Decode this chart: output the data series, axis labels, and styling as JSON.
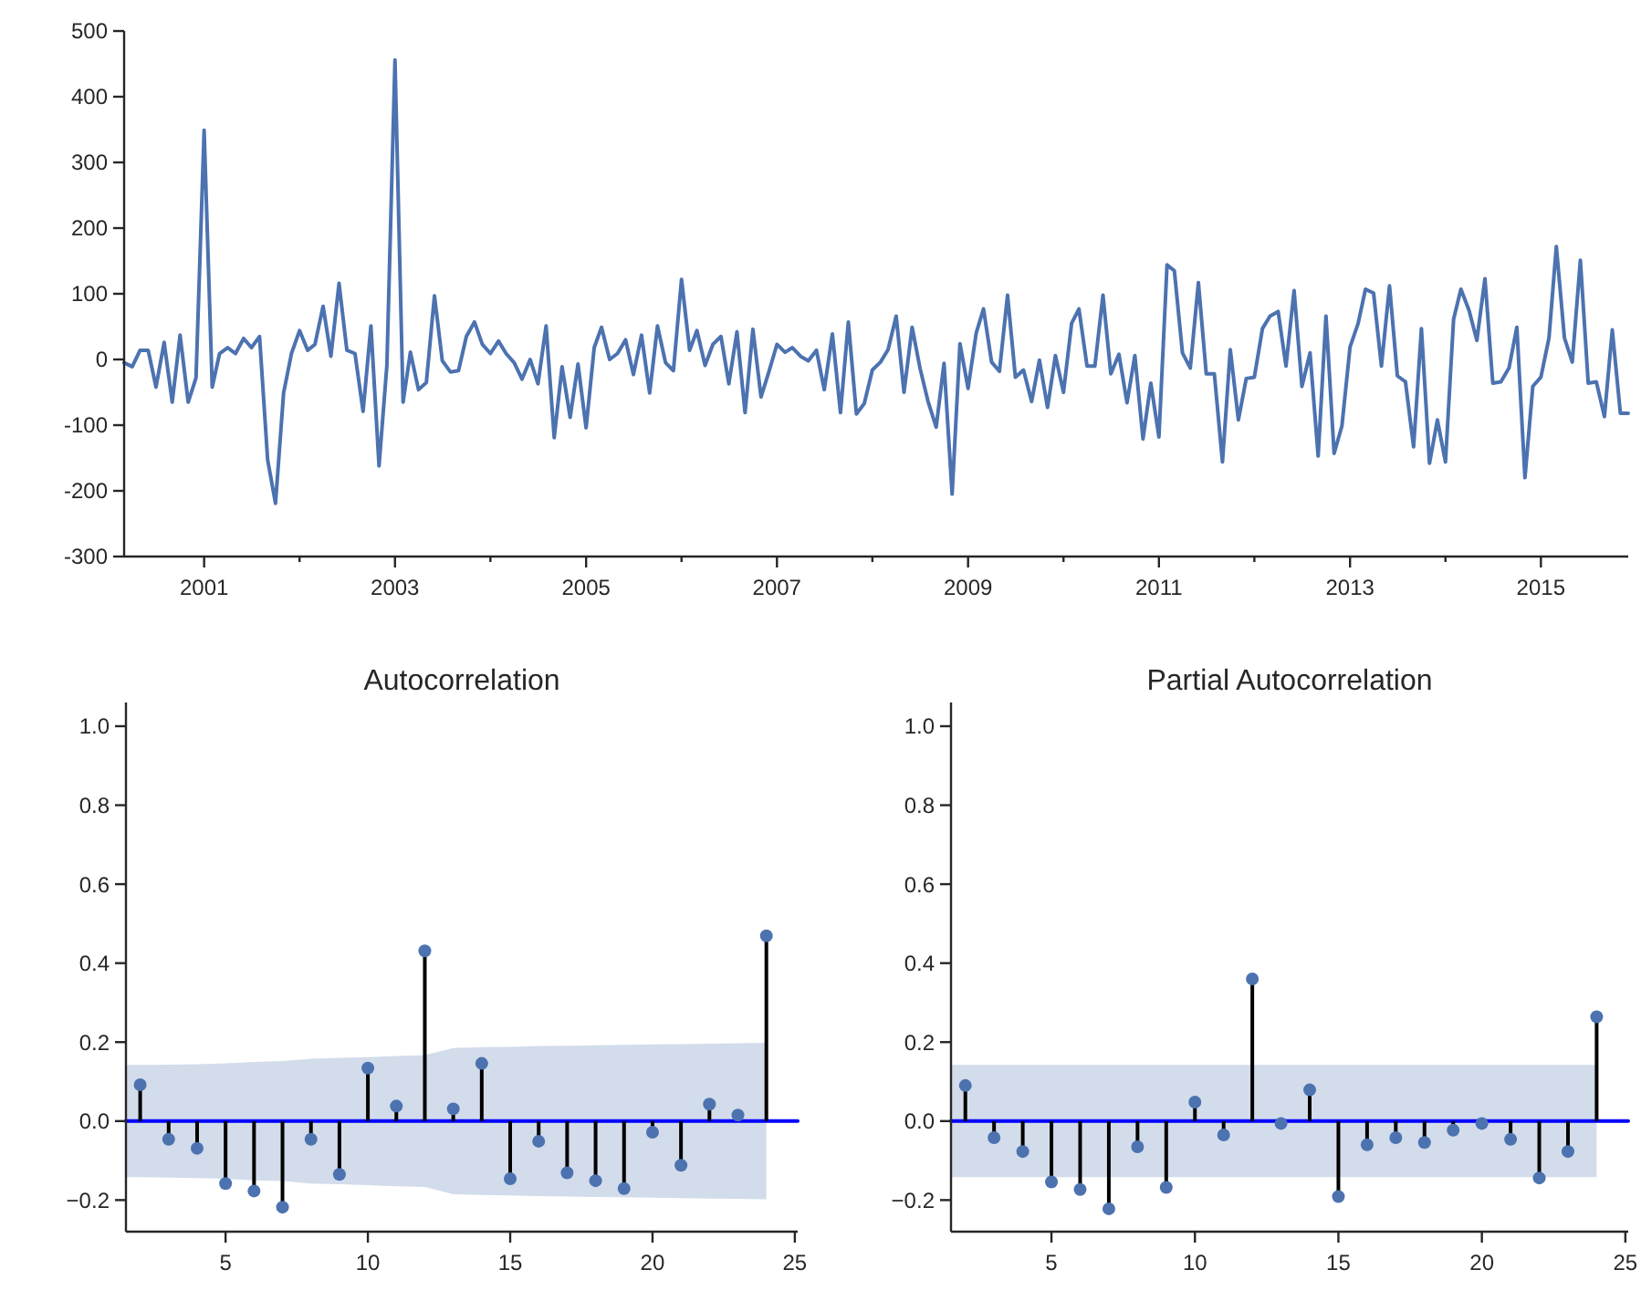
{
  "chart_data": [
    {
      "type": "line",
      "xlim": [
        "2000-03",
        "2015-12"
      ],
      "ylim": [
        -300,
        500
      ],
      "yticks": [
        -300,
        -200,
        -100,
        0,
        100,
        200,
        300,
        400,
        500
      ],
      "xticks": [
        "2001",
        {
          "value": "2002",
          "label": null
        },
        "2003",
        {
          "value": "2004",
          "label": null
        },
        "2005",
        {
          "value": "2006",
          "label": null
        },
        "2007",
        {
          "value": "2008",
          "label": null
        },
        "2009",
        {
          "value": "2010",
          "label": null
        },
        "2011",
        {
          "value": "2012",
          "label": null
        },
        "2013",
        {
          "value": "2014",
          "label": null
        },
        "2015"
      ],
      "grid": false,
      "marker": "none",
      "line_style": "solid",
      "series": [
        {
          "color": "#4c72b0",
          "x": [
            "2000-03",
            "2000-04",
            "2000-05",
            "2000-06",
            "2000-07",
            "2000-08",
            "2000-09",
            "2000-10",
            "2000-11",
            "2000-12",
            "2001-01",
            "2001-02",
            "2001-03",
            "2001-04",
            "2001-05",
            "2001-06",
            "2001-07",
            "2001-08",
            "2001-09",
            "2001-10",
            "2001-11",
            "2001-12",
            "2002-01",
            "2002-02",
            "2002-03",
            "2002-04",
            "2002-05",
            "2002-06",
            "2002-07",
            "2002-08",
            "2002-09",
            "2002-10",
            "2002-11",
            "2002-12",
            "2003-01",
            "2003-02",
            "2003-03",
            "2003-04",
            "2003-05",
            "2003-06",
            "2003-07",
            "2003-08",
            "2003-09",
            "2003-10",
            "2003-11",
            "2003-12",
            "2004-01",
            "2004-02",
            "2004-03",
            "2004-04",
            "2004-05",
            "2004-06",
            "2004-07",
            "2004-08",
            "2004-09",
            "2004-10",
            "2004-11",
            "2004-12",
            "2005-01",
            "2005-02",
            "2005-03",
            "2005-04",
            "2005-05",
            "2005-06",
            "2005-07",
            "2005-08",
            "2005-09",
            "2005-10",
            "2005-11",
            "2005-12",
            "2006-01",
            "2006-02",
            "2006-03",
            "2006-04",
            "2006-05",
            "2006-06",
            "2006-07",
            "2006-08",
            "2006-09",
            "2006-10",
            "2006-11",
            "2006-12",
            "2007-01",
            "2007-02",
            "2007-03",
            "2007-04",
            "2007-05",
            "2007-06",
            "2007-07",
            "2007-08",
            "2007-09",
            "2007-10",
            "2007-11",
            "2007-12",
            "2008-01",
            "2008-02",
            "2008-03",
            "2008-04",
            "2008-05",
            "2008-06",
            "2008-07",
            "2008-08",
            "2008-09",
            "2008-10",
            "2008-11",
            "2008-12",
            "2009-01",
            "2009-02",
            "2009-03",
            "2009-04",
            "2009-05",
            "2009-06",
            "2009-07",
            "2009-08",
            "2009-09",
            "2009-10",
            "2009-11",
            "2009-12",
            "2010-01",
            "2010-02",
            "2010-03",
            "2010-04",
            "2010-05",
            "2010-06",
            "2010-07",
            "2010-08",
            "2010-09",
            "2010-10",
            "2010-11",
            "2010-12",
            "2011-01",
            "2011-02",
            "2011-03",
            "2011-04",
            "2011-05",
            "2011-06",
            "2011-07",
            "2011-08",
            "2011-09",
            "2011-10",
            "2011-11",
            "2011-12",
            "2012-01",
            "2012-02",
            "2012-03",
            "2012-04",
            "2012-05",
            "2012-06",
            "2012-07",
            "2012-08",
            "2012-09",
            "2012-10",
            "2012-11",
            "2012-12",
            "2013-01",
            "2013-02",
            "2013-03",
            "2013-04",
            "2013-05",
            "2013-06",
            "2013-07",
            "2013-08",
            "2013-09",
            "2013-10",
            "2013-11",
            "2013-12",
            "2014-01",
            "2014-02",
            "2014-03",
            "2014-04",
            "2014-05",
            "2014-06",
            "2014-07",
            "2014-08",
            "2014-09",
            "2014-10",
            "2014-11",
            "2014-12",
            "2015-01",
            "2015-02",
            "2015-03",
            "2015-04",
            "2015-05",
            "2015-06",
            "2015-07",
            "2015-08",
            "2015-09",
            "2015-10",
            "2015-11",
            "2015-12"
          ],
          "values": [
            -5,
            -11,
            14,
            14,
            -42,
            26,
            -65,
            37,
            -65,
            -28,
            349,
            -42,
            9,
            18,
            9,
            32,
            18,
            35,
            -153,
            -219,
            -51,
            9,
            44,
            14,
            23,
            81,
            5,
            116,
            14,
            9,
            -79,
            51,
            -162,
            -9,
            456,
            -65,
            11,
            -46,
            -35,
            97,
            -2,
            -19,
            -17,
            35,
            57,
            23,
            9,
            28,
            9,
            -5,
            -30,
            0,
            -37,
            51,
            -119,
            -11,
            -88,
            -7,
            -104,
            18,
            49,
            0,
            9,
            30,
            -23,
            37,
            -51,
            51,
            -5,
            -17,
            122,
            14,
            44,
            -9,
            23,
            35,
            -37,
            42,
            -81,
            46,
            -57,
            -19,
            23,
            11,
            18,
            5,
            -2,
            14,
            -46,
            39,
            -81,
            57,
            -83,
            -67,
            -16,
            -4,
            15,
            66,
            -50,
            49,
            -13,
            -64,
            -103,
            -6,
            -205,
            24,
            -44,
            40,
            77,
            -4,
            -18,
            98,
            -27,
            -16,
            -64,
            -1,
            -73,
            6,
            -50,
            55,
            77,
            -10,
            -10,
            98,
            -22,
            8,
            -66,
            6,
            -121,
            -36,
            -118,
            144,
            135,
            10,
            -13,
            117,
            -22,
            -22,
            -156,
            15,
            -92,
            -29,
            -27,
            47,
            66,
            73,
            -10,
            105,
            -41,
            10,
            -147,
            66,
            -143,
            -101,
            19,
            55,
            107,
            101,
            -10,
            112,
            -25,
            -34,
            -133,
            47,
            -158,
            -92,
            -156,
            61,
            107,
            75,
            29,
            123,
            -36,
            -34,
            -13,
            49,
            -180,
            -41,
            -27,
            33,
            172,
            33,
            -4,
            151,
            -36,
            -34,
            -87,
            45,
            -82,
            -82
          ]
        }
      ]
    },
    {
      "type": "lollipop",
      "title": "Autocorrelation",
      "xlim": [
        1.5,
        25.1
      ],
      "xticks": [
        5,
        10,
        15,
        20,
        25
      ],
      "ylim": [
        -0.28,
        1.06
      ],
      "yticks": [
        {
          "value": -0.2,
          "label": "−0.2"
        },
        {
          "value": 0,
          "label": "0.0"
        },
        {
          "value": 0.2,
          "label": "0.2"
        },
        {
          "value": 0.4,
          "label": "0.4"
        },
        {
          "value": 0.6,
          "label": "0.6"
        },
        {
          "value": 0.8,
          "label": "0.8"
        },
        {
          "value": 1,
          "label": "1.0"
        }
      ],
      "grid": false,
      "series": [
        {
          "color": "#4c72b0",
          "marker": "circle",
          "x": [
            2,
            3,
            4,
            5,
            6,
            7,
            8,
            9,
            10,
            11,
            12,
            13,
            14,
            15,
            16,
            17,
            18,
            19,
            20,
            21,
            22,
            23,
            24
          ],
          "values": [
            0.092,
            -0.046,
            -0.069,
            -0.158,
            -0.177,
            -0.218,
            -0.046,
            -0.135,
            0.134,
            0.038,
            0.431,
            0.031,
            0.146,
            -0.146,
            -0.051,
            -0.131,
            -0.151,
            -0.171,
            -0.028,
            -0.112,
            0.043,
            0.015,
            0.469
          ]
        },
        {
          "type": "line",
          "color": "#0000ff",
          "x": [
            1.5,
            2,
            3,
            4,
            5,
            6,
            7,
            8,
            9,
            10,
            11,
            12,
            13,
            14,
            15,
            16,
            17,
            18,
            19,
            20,
            21,
            22,
            23,
            24,
            25.1
          ],
          "values": [
            0,
            0,
            0,
            0,
            0,
            0,
            0,
            0,
            0,
            0,
            0,
            0,
            0,
            0,
            0,
            0,
            0,
            0,
            0,
            0,
            0,
            0,
            0,
            0,
            0
          ],
          "marker": "none",
          "upper": [
            0.142,
            0.142,
            0.143,
            0.144,
            0.146,
            0.15,
            0.152,
            0.158,
            0.16,
            0.162,
            0.165,
            0.167,
            0.185,
            0.187,
            0.188,
            0.19,
            0.191,
            0.192,
            0.193,
            0.194,
            0.195,
            0.196,
            0.197,
            0.198,
            null
          ],
          "lower": [
            -0.142,
            -0.142,
            -0.143,
            -0.144,
            -0.146,
            -0.15,
            -0.152,
            -0.158,
            -0.16,
            -0.162,
            -0.165,
            -0.167,
            -0.185,
            -0.187,
            -0.188,
            -0.19,
            -0.191,
            -0.192,
            -0.193,
            -0.194,
            -0.195,
            -0.196,
            -0.197,
            -0.198,
            null
          ]
        }
      ]
    },
    {
      "type": "lollipop",
      "title": "Partial Autocorrelation",
      "xlim": [
        1.5,
        25.1
      ],
      "xticks": [
        5,
        10,
        15,
        20,
        25
      ],
      "ylim": [
        -0.28,
        1.06
      ],
      "yticks": [
        {
          "value": -0.2,
          "label": "−0.2"
        },
        {
          "value": 0,
          "label": "0.0"
        },
        {
          "value": 0.2,
          "label": "0.2"
        },
        {
          "value": 0.4,
          "label": "0.4"
        },
        {
          "value": 0.6,
          "label": "0.6"
        },
        {
          "value": 0.8,
          "label": "0.8"
        },
        {
          "value": 1,
          "label": "1.0"
        }
      ],
      "grid": false,
      "series": [
        {
          "color": "#4c72b0",
          "marker": "circle",
          "x": [
            2,
            3,
            4,
            5,
            6,
            7,
            8,
            9,
            10,
            11,
            12,
            13,
            14,
            15,
            16,
            17,
            18,
            19,
            20,
            21,
            22,
            23,
            24
          ],
          "values": [
            0.09,
            -0.042,
            -0.077,
            -0.154,
            -0.173,
            -0.222,
            -0.065,
            -0.168,
            0.048,
            -0.035,
            0.36,
            -0.006,
            0.079,
            -0.191,
            -0.06,
            -0.042,
            -0.054,
            -0.023,
            -0.006,
            -0.046,
            -0.144,
            -0.077,
            0.264
          ]
        },
        {
          "type": "line",
          "color": "#0000ff",
          "x": [
            1.5,
            2,
            3,
            4,
            5,
            6,
            7,
            8,
            9,
            10,
            11,
            12,
            13,
            14,
            15,
            16,
            17,
            18,
            19,
            20,
            21,
            22,
            23,
            24,
            25.1
          ],
          "values": [
            0,
            0,
            0,
            0,
            0,
            0,
            0,
            0,
            0,
            0,
            0,
            0,
            0,
            0,
            0,
            0,
            0,
            0,
            0,
            0,
            0,
            0,
            0,
            0,
            0
          ],
          "marker": "none",
          "upper": [
            0.142,
            0.142,
            0.142,
            0.142,
            0.142,
            0.142,
            0.142,
            0.142,
            0.142,
            0.142,
            0.142,
            0.142,
            0.142,
            0.142,
            0.142,
            0.142,
            0.142,
            0.142,
            0.142,
            0.142,
            0.142,
            0.142,
            0.142,
            0.142,
            null
          ],
          "lower": [
            -0.142,
            -0.142,
            -0.142,
            -0.142,
            -0.142,
            -0.142,
            -0.142,
            -0.142,
            -0.142,
            -0.142,
            -0.142,
            -0.142,
            -0.142,
            -0.142,
            -0.142,
            -0.142,
            -0.142,
            -0.142,
            -0.142,
            -0.142,
            -0.142,
            -0.142,
            -0.142,
            -0.142,
            null
          ]
        }
      ]
    }
  ]
}
